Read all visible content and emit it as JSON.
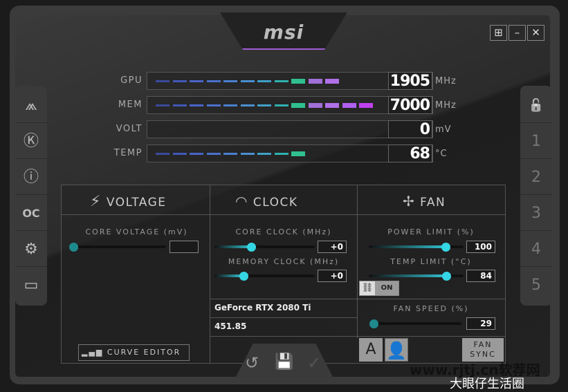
{
  "app": {
    "logo": "msi",
    "accent": "#35d6e4"
  },
  "window_buttons": [
    {
      "icon": "windows-icon",
      "label": "⊞"
    },
    {
      "icon": "minimize-icon",
      "label": "–"
    },
    {
      "icon": "close-icon",
      "label": "✕"
    }
  ],
  "left_sidebar": [
    {
      "icon": "msi-dragon-icon",
      "glyph": "⩕"
    },
    {
      "icon": "kombustor-icon",
      "glyph": "Ⓚ"
    },
    {
      "icon": "info-icon",
      "glyph": "ⓘ"
    },
    {
      "icon": "oc-scanner-icon",
      "glyph": "OC"
    },
    {
      "icon": "settings-gear-icon",
      "glyph": "⚙"
    },
    {
      "icon": "monitor-icon",
      "glyph": "▭"
    }
  ],
  "right_sidebar": [
    {
      "icon": "lock-icon",
      "glyph": "🔓"
    },
    {
      "label": "1"
    },
    {
      "label": "2"
    },
    {
      "label": "3"
    },
    {
      "label": "4"
    },
    {
      "label": "5"
    }
  ],
  "meters": [
    {
      "label": "GPU",
      "value": "1905",
      "unit": "MHz",
      "fill": 0.75
    },
    {
      "label": "MEM",
      "value": "7000",
      "unit": "MHz",
      "fill": 0.93
    },
    {
      "label": "VOLT",
      "value": "0",
      "unit": "mV",
      "fill": 0
    },
    {
      "label": "TEMP",
      "value": "68",
      "unit": "°C",
      "fill": 0.67
    }
  ],
  "voltage": {
    "title": "VOLTAGE",
    "core_voltage_label": "CORE VOLTAGE  (mV)",
    "core_voltage_value": "",
    "curve_editor": "CURVE EDITOR"
  },
  "clock": {
    "title": "CLOCK",
    "core_clock_label": "CORE CLOCK (MHz)",
    "core_clock_value": "+0",
    "memory_clock_label": "MEMORY CLOCK (MHz)",
    "memory_clock_value": "+0",
    "gpu_name": "GeForce RTX 2080 Ti",
    "driver_version": "451.85"
  },
  "fan": {
    "title": "FAN",
    "power_limit_label": "POWER LIMIT (%)",
    "power_limit_value": "100",
    "temp_limit_label": "TEMP LIMIT (°C)",
    "temp_limit_value": "84",
    "link_toggle": "ON",
    "fan_speed_label": "FAN SPEED (%)",
    "fan_speed_value": "29",
    "auto_label": "A",
    "fan_sync": "FAN SYNC"
  },
  "bottom_actions": [
    {
      "icon": "reset-icon",
      "glyph": "↺"
    },
    {
      "icon": "save-icon",
      "glyph": "💾"
    },
    {
      "icon": "apply-check-icon",
      "glyph": "✓"
    }
  ],
  "watermark": {
    "line1": "www.rjtj.cn软荐网",
    "line2": "大眼仔生活圈"
  }
}
